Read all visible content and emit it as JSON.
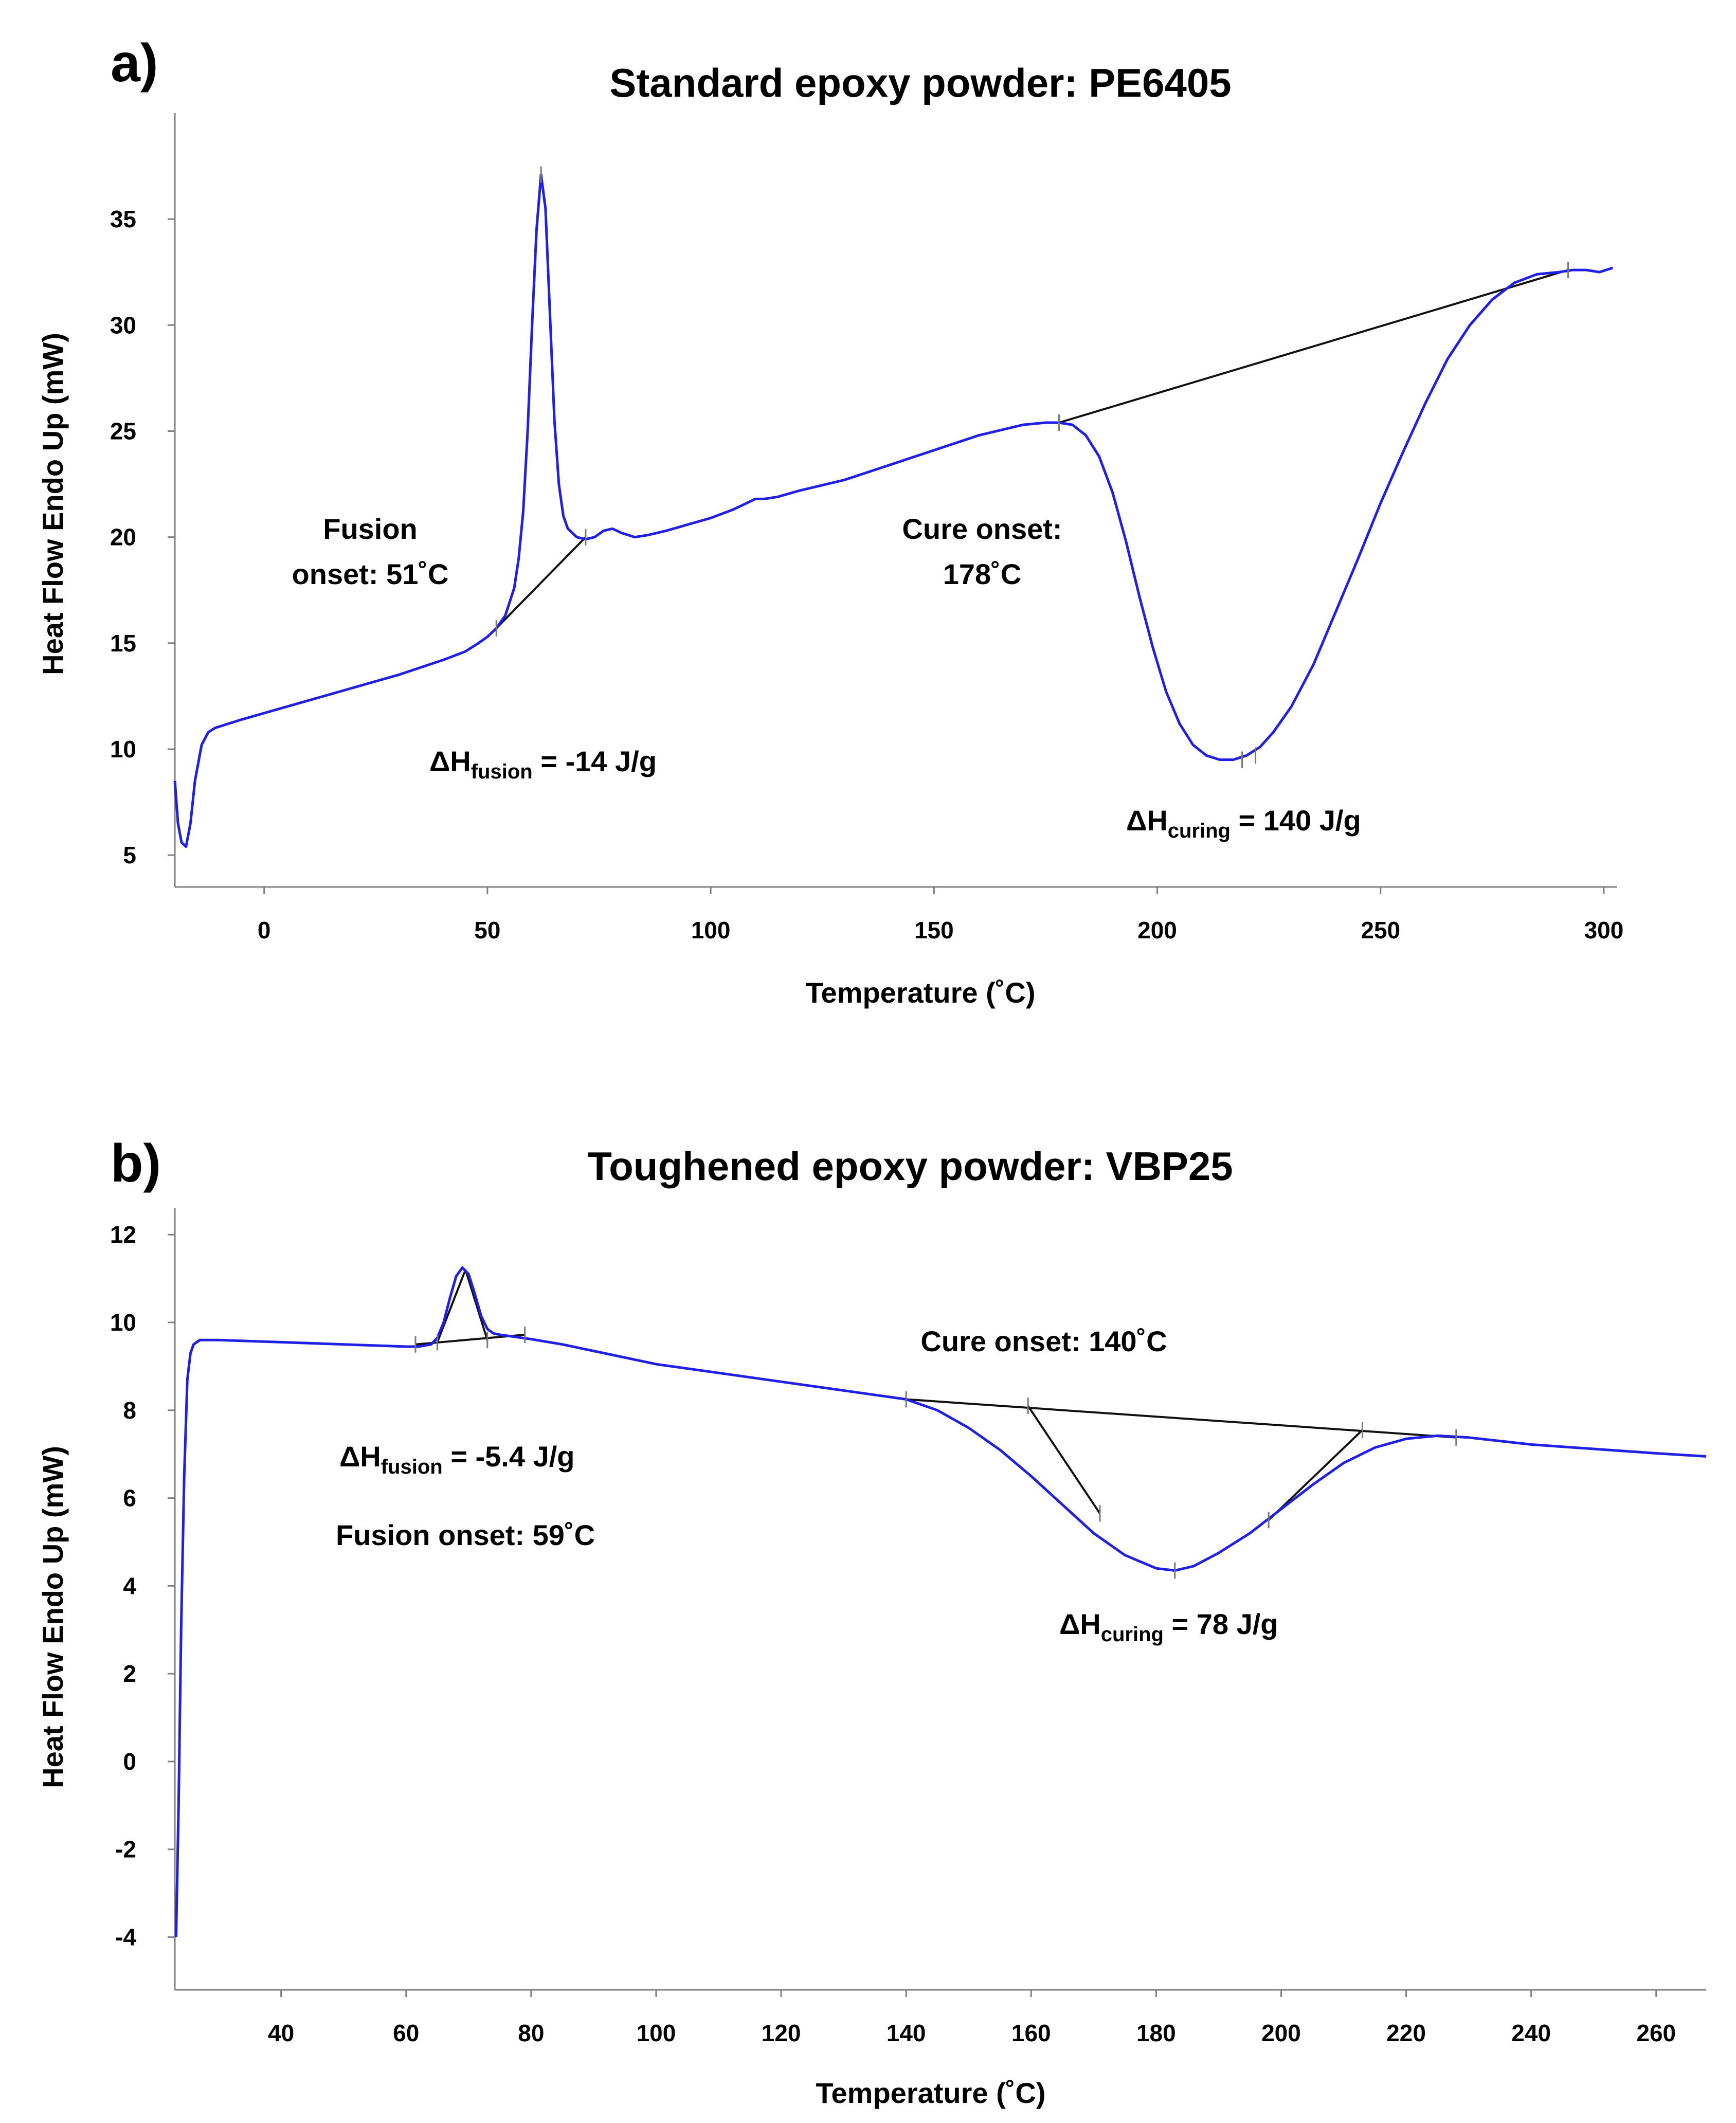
{
  "chart_data": [
    {
      "type": "line",
      "panel_label": "a)",
      "title": "Standard epoxy powder: PE6405",
      "xlabel": "Temperature (˚C)",
      "ylabel": "Heat Flow Endo Up (mW)",
      "xlim": [
        -20,
        303
      ],
      "ylim": [
        3.5,
        40
      ],
      "xticks": [
        0,
        50,
        100,
        150,
        200,
        250,
        300
      ],
      "yticks": [
        5,
        10,
        15,
        20,
        25,
        30,
        35
      ],
      "series": [
        {
          "name": "PE6405 heat flow",
          "color": "#1f1fe6",
          "x": [
            -20,
            -19.3,
            -18.5,
            -17.5,
            -16.5,
            -15.5,
            -14,
            -12.5,
            -11,
            -8,
            -5,
            0,
            10,
            20,
            30,
            40,
            45,
            48,
            50,
            52,
            54,
            56,
            57,
            58,
            59,
            60,
            61,
            62,
            63,
            64,
            65,
            66,
            67,
            68,
            70,
            72,
            74,
            76,
            78,
            80,
            83,
            86,
            90,
            95,
            100,
            105,
            108,
            110,
            112,
            115,
            120,
            130,
            140,
            150,
            160,
            170,
            175,
            178,
            181,
            184,
            187,
            190,
            193,
            196,
            199,
            202,
            205,
            208,
            211,
            214,
            217,
            220,
            223,
            226,
            230,
            235,
            240,
            245,
            250,
            255,
            260,
            265,
            270,
            275,
            280,
            285,
            290,
            293,
            296,
            299,
            302
          ],
          "y": [
            8.5,
            6.5,
            5.6,
            5.4,
            6.5,
            8.5,
            10.2,
            10.8,
            11.0,
            11.2,
            11.4,
            11.7,
            12.3,
            12.9,
            13.5,
            14.2,
            14.6,
            15.0,
            15.3,
            15.7,
            16.3,
            17.6,
            19.0,
            21.2,
            25.0,
            30.0,
            34.5,
            37.1,
            35.5,
            30.5,
            25.5,
            22.5,
            21.0,
            20.4,
            20.0,
            19.9,
            20.0,
            20.3,
            20.4,
            20.2,
            20.0,
            20.1,
            20.3,
            20.6,
            20.9,
            21.3,
            21.6,
            21.8,
            21.8,
            21.9,
            22.2,
            22.7,
            23.4,
            24.1,
            24.8,
            25.3,
            25.4,
            25.4,
            25.3,
            24.8,
            23.8,
            22.1,
            19.8,
            17.2,
            14.8,
            12.7,
            11.2,
            10.2,
            9.7,
            9.5,
            9.5,
            9.7,
            10.1,
            10.8,
            12.0,
            14.0,
            16.5,
            19.0,
            21.6,
            24.0,
            26.3,
            28.4,
            30.0,
            31.2,
            32.0,
            32.4,
            32.5,
            32.6,
            32.6,
            32.5,
            32.7
          ]
        }
      ],
      "baselines": [
        {
          "name": "fusion baseline",
          "x": [
            52,
            72
          ],
          "y": [
            15.7,
            20.0
          ]
        },
        {
          "name": "curing baseline",
          "x": [
            178,
            292
          ],
          "y": [
            25.4,
            32.6
          ]
        }
      ],
      "markers": [
        {
          "x": 52,
          "y": 15.7
        },
        {
          "x": 62,
          "y": 37.1
        },
        {
          "x": 72,
          "y": 20.0
        },
        {
          "x": 178,
          "y": 25.4
        },
        {
          "x": 219,
          "y": 9.5
        },
        {
          "x": 222,
          "y": 9.7
        },
        {
          "x": 292,
          "y": 32.6
        }
      ],
      "annotations": {
        "fusion_onset_line1": "Fusion",
        "fusion_onset_line2": "onset: 51˚C",
        "cure_onset_line1": "Cure onset:",
        "cure_onset_line2": "178˚C",
        "dh_fusion_main": "ΔH",
        "dh_fusion_sub": "fusion",
        "dh_fusion_value": " = -14 J/g",
        "dh_curing_main": "ΔH",
        "dh_curing_sub": "curing",
        "dh_curing_value": " = 140 J/g"
      }
    },
    {
      "type": "line",
      "panel_label": "b)",
      "title": "Toughened epoxy powder: VBP25",
      "xlabel": "Temperature (˚C)",
      "ylabel": "Heat Flow Endo Up (mW)",
      "xlim": [
        23,
        268
      ],
      "ylim": [
        -5.2,
        12.6
      ],
      "xticks": [
        40,
        60,
        80,
        100,
        120,
        140,
        160,
        180,
        200,
        220,
        240,
        260
      ],
      "yticks": [
        -4,
        -2,
        0,
        2,
        4,
        6,
        8,
        10,
        12
      ],
      "series": [
        {
          "name": "VBP25 heat flow",
          "color": "#1f1fe6",
          "x": [
            23.2,
            23.6,
            24.0,
            24.5,
            25.0,
            25.5,
            26.0,
            27.0,
            30,
            40,
            50,
            60,
            62,
            64,
            65,
            66,
            67,
            68,
            69,
            70,
            71,
            72,
            73,
            74,
            75,
            77,
            80,
            85,
            90,
            95,
            100,
            110,
            120,
            130,
            140,
            145,
            150,
            155,
            160,
            165,
            170,
            175,
            180,
            183,
            186,
            190,
            195,
            200,
            205,
            210,
            215,
            220,
            225,
            230,
            235,
            240,
            250,
            260,
            268
          ],
          "y": [
            -4.0,
            -1.0,
            3.0,
            6.5,
            8.7,
            9.3,
            9.5,
            9.6,
            9.6,
            9.55,
            9.5,
            9.45,
            9.45,
            9.5,
            9.65,
            10.0,
            10.55,
            11.05,
            11.25,
            11.1,
            10.65,
            10.15,
            9.85,
            9.75,
            9.72,
            9.68,
            9.62,
            9.5,
            9.35,
            9.2,
            9.05,
            8.85,
            8.65,
            8.45,
            8.25,
            8.0,
            7.6,
            7.1,
            6.5,
            5.85,
            5.2,
            4.7,
            4.4,
            4.35,
            4.45,
            4.75,
            5.2,
            5.75,
            6.3,
            6.8,
            7.15,
            7.35,
            7.42,
            7.38,
            7.3,
            7.22,
            7.12,
            7.02,
            6.95
          ]
        }
      ],
      "baselines": [
        {
          "name": "fusion baseline",
          "x": [
            61.5,
            79
          ],
          "y": [
            9.5,
            9.72
          ]
        },
        {
          "name": "fusion tangent rise",
          "x": [
            65,
            69.5
          ],
          "y": [
            9.55,
            11.2
          ]
        },
        {
          "name": "fusion tangent fall",
          "x": [
            69.5,
            73
          ],
          "y": [
            11.2,
            9.6
          ]
        },
        {
          "name": "curing baseline",
          "x": [
            140,
            228
          ],
          "y": [
            8.25,
            7.38
          ]
        },
        {
          "name": "curing tangent fall",
          "x": [
            159.5,
            171
          ],
          "y": [
            8.1,
            5.65
          ]
        },
        {
          "name": "curing tangent rise",
          "x": [
            198,
            213
          ],
          "y": [
            5.5,
            7.55
          ]
        }
      ],
      "markers": [
        {
          "x": 61.5,
          "y": 9.5
        },
        {
          "x": 65,
          "y": 9.55
        },
        {
          "x": 73,
          "y": 9.6
        },
        {
          "x": 79,
          "y": 9.72
        },
        {
          "x": 140,
          "y": 8.25
        },
        {
          "x": 159.5,
          "y": 8.1
        },
        {
          "x": 171,
          "y": 5.65
        },
        {
          "x": 183,
          "y": 4.35
        },
        {
          "x": 198,
          "y": 5.5
        },
        {
          "x": 213,
          "y": 7.55
        },
        {
          "x": 228,
          "y": 7.38
        }
      ],
      "annotations": {
        "cure_onset": "Cure onset: 140˚C",
        "fusion_onset": "Fusion onset: 59˚C",
        "dh_fusion_main": "ΔH",
        "dh_fusion_sub": "fusion",
        "dh_fusion_value": " = -5.4 J/g",
        "dh_curing_main": "ΔH",
        "dh_curing_sub": "curing",
        "dh_curing_value": " = 78 J/g"
      }
    }
  ]
}
